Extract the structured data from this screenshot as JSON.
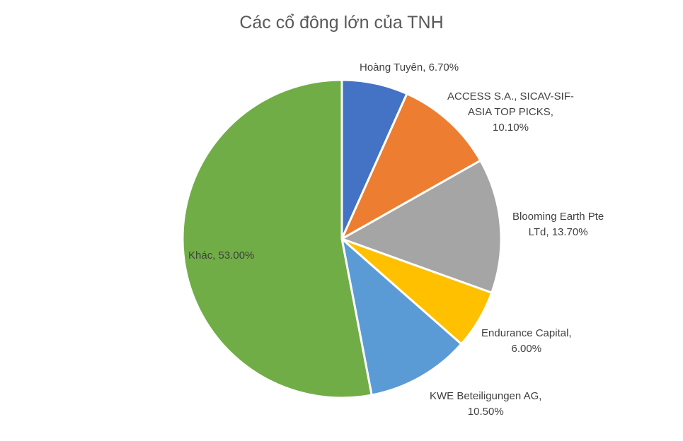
{
  "chart_data": {
    "type": "pie",
    "title": "Các cổ đông lớn của TNH",
    "categories": [
      "Hoàng Tuyên",
      "ACCESS S.A., SICAV-SIF-ASIA TOP PICKS",
      "Blooming Earth Pte LTd",
      "Endurance Capital",
      "KWE Beteiligungen AG",
      "Khác"
    ],
    "values": [
      6.7,
      10.1,
      13.7,
      6.0,
      10.5,
      53.0
    ],
    "colors": [
      "#4472C4",
      "#ED7D31",
      "#A5A5A5",
      "#FFC000",
      "#5B9BD5",
      "#70AD47"
    ],
    "labels": [
      {
        "lines": [
          "Hoàng Tuyên, 6.70%"
        ]
      },
      {
        "lines": [
          "ACCESS S.A., SICAV-SIF-",
          "ASIA TOP PICKS,",
          "10.10%"
        ]
      },
      {
        "lines": [
          "Blooming Earth Pte",
          "LTd, 13.70%"
        ]
      },
      {
        "lines": [
          "Endurance Capital,",
          "6.00%"
        ]
      },
      {
        "lines": [
          "KWE Beteiligungen AG,",
          "10.50%"
        ]
      },
      {
        "lines": [
          "Khác, 53.00%"
        ]
      }
    ],
    "legend": "none",
    "data_labels": "category, percentage"
  }
}
